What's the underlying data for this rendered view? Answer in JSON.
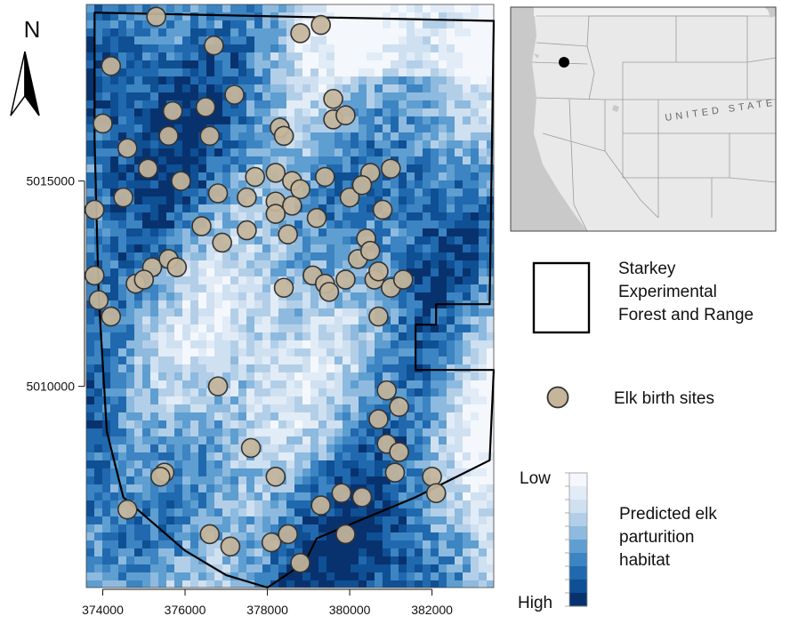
{
  "north_arrow": {
    "letter": "N"
  },
  "axes": {
    "x_ticks": [
      {
        "value": 374000,
        "label": "374000"
      },
      {
        "value": 376000,
        "label": "376000"
      },
      {
        "value": 378000,
        "label": "378000"
      },
      {
        "value": 380000,
        "label": "380000"
      },
      {
        "value": 382000,
        "label": "382000"
      }
    ],
    "y_ticks": [
      {
        "value": 5015000,
        "label": "5015000"
      },
      {
        "value": 5010000,
        "label": "5010000"
      }
    ],
    "x_range": [
      373600,
      383500
    ],
    "y_range": [
      5005100,
      5019300
    ]
  },
  "boundary": {
    "name": "Starkey Experimental Forest and Range",
    "vertices": [
      [
        373800,
        5019100
      ],
      [
        383500,
        5018900
      ],
      [
        383400,
        5012000
      ],
      [
        382100,
        5012000
      ],
      [
        382100,
        5011500
      ],
      [
        381600,
        5011500
      ],
      [
        381600,
        5010400
      ],
      [
        383500,
        5010400
      ],
      [
        383400,
        5008200
      ],
      [
        381600,
        5007300
      ],
      [
        379200,
        5006300
      ],
      [
        378900,
        5005700
      ],
      [
        378000,
        5005100
      ],
      [
        377000,
        5005400
      ],
      [
        376000,
        5006000
      ],
      [
        374500,
        5007300
      ],
      [
        374100,
        5008900
      ],
      [
        373900,
        5012200
      ],
      [
        373800,
        5016000
      ]
    ]
  },
  "birth_sites": [
    [
      375300,
      5019000
    ],
    [
      374200,
      5017800
    ],
    [
      376700,
      5018300
    ],
    [
      378800,
      5018600
    ],
    [
      379300,
      5018800
    ],
    [
      377200,
      5017100
    ],
    [
      375700,
      5016700
    ],
    [
      376500,
      5016800
    ],
    [
      374000,
      5016400
    ],
    [
      375600,
      5016100
    ],
    [
      376600,
      5016100
    ],
    [
      378300,
      5016300
    ],
    [
      378400,
      5016100
    ],
    [
      379600,
      5017000
    ],
    [
      379600,
      5016500
    ],
    [
      379900,
      5016600
    ],
    [
      374600,
      5015800
    ],
    [
      375100,
      5015300
    ],
    [
      375900,
      5015000
    ],
    [
      377700,
      5015100
    ],
    [
      378200,
      5015200
    ],
    [
      378600,
      5015000
    ],
    [
      378800,
      5014800
    ],
    [
      379400,
      5015100
    ],
    [
      380500,
      5015200
    ],
    [
      381000,
      5015300
    ],
    [
      374500,
      5014600
    ],
    [
      376800,
      5014700
    ],
    [
      377500,
      5014600
    ],
    [
      378200,
      5014500
    ],
    [
      378600,
      5014400
    ],
    [
      380000,
      5014600
    ],
    [
      380300,
      5014900
    ],
    [
      373800,
      5014300
    ],
    [
      376400,
      5013900
    ],
    [
      376900,
      5013500
    ],
    [
      377500,
      5013800
    ],
    [
      378200,
      5014200
    ],
    [
      378500,
      5013700
    ],
    [
      379200,
      5014100
    ],
    [
      380400,
      5013600
    ],
    [
      380800,
      5014300
    ],
    [
      380200,
      5013100
    ],
    [
      380500,
      5013300
    ],
    [
      373800,
      5012700
    ],
    [
      375200,
      5012900
    ],
    [
      375600,
      5013100
    ],
    [
      375800,
      5012900
    ],
    [
      374800,
      5012500
    ],
    [
      375000,
      5012600
    ],
    [
      378400,
      5012400
    ],
    [
      379100,
      5012700
    ],
    [
      379400,
      5012500
    ],
    [
      379500,
      5012300
    ],
    [
      379900,
      5012600
    ],
    [
      380600,
      5012600
    ],
    [
      380700,
      5012800
    ],
    [
      381000,
      5012400
    ],
    [
      381300,
      5012600
    ],
    [
      373900,
      5012100
    ],
    [
      374200,
      5011700
    ],
    [
      380700,
      5011700
    ],
    [
      376800,
      5010000
    ],
    [
      380900,
      5009900
    ],
    [
      381200,
      5009500
    ],
    [
      380700,
      5009200
    ],
    [
      380900,
      5008600
    ],
    [
      377600,
      5008500
    ],
    [
      375500,
      5007900
    ],
    [
      375400,
      5007800
    ],
    [
      378200,
      5007800
    ],
    [
      381200,
      5008400
    ],
    [
      381100,
      5007900
    ],
    [
      382000,
      5007800
    ],
    [
      382100,
      5007400
    ],
    [
      379300,
      5007100
    ],
    [
      379800,
      5007400
    ],
    [
      380300,
      5007300
    ],
    [
      374600,
      5007000
    ],
    [
      376600,
      5006400
    ],
    [
      377100,
      5006100
    ],
    [
      378100,
      5006200
    ],
    [
      378500,
      5006400
    ],
    [
      378800,
      5005700
    ],
    [
      379900,
      5006400
    ]
  ],
  "legend": {
    "boundary_label_lines": [
      "Starkey",
      "Experimental",
      "Forest and Range"
    ],
    "sites_label": "Elk birth sites",
    "habitat_label_lines": [
      "Predicted elk",
      "parturition",
      "habitat"
    ],
    "scale_low": "Low",
    "scale_high": "High",
    "scale_colors": [
      "#f4f8fd",
      "#e2ecf7",
      "#cfe0f1",
      "#b3cfe8",
      "#8dbade",
      "#5f9ed0",
      "#3c84c2",
      "#2069ae",
      "#0f4f94",
      "#08326e"
    ]
  },
  "colors": {
    "site_fill": "#c5b59a",
    "site_stroke": "#333333",
    "boundary_stroke": "#000000"
  },
  "inset": {
    "country_label": "UNITED STATES",
    "location_marker": "Starkey location"
  }
}
